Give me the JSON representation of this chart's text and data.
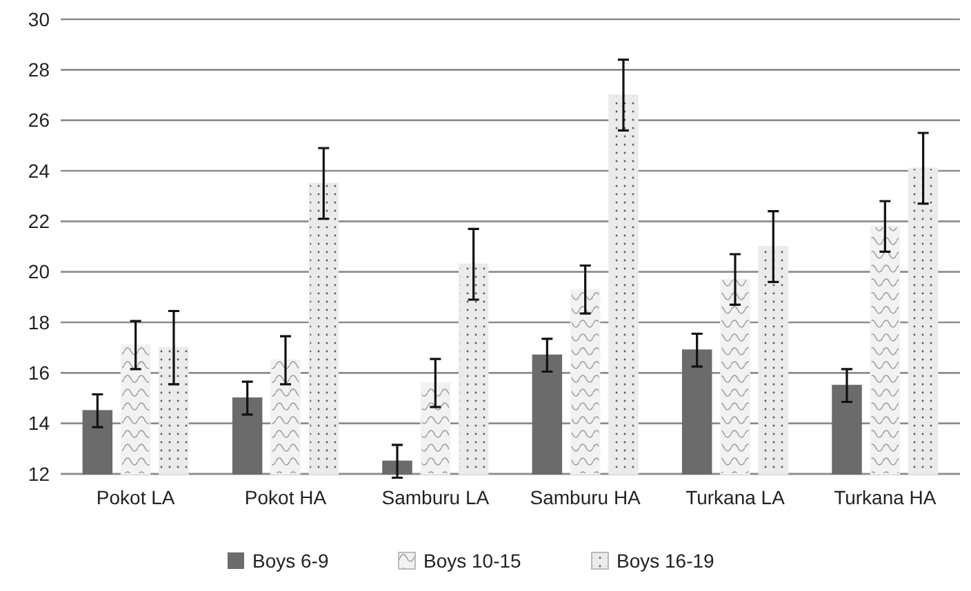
{
  "chart_data": {
    "type": "bar",
    "categories": [
      "Pokot LA",
      "Pokot HA",
      "Samburu LA",
      "Samburu HA",
      "Turkana LA",
      "Turkana HA"
    ],
    "series": [
      {
        "name": "Boys 6-9",
        "color": "#6b6b6b",
        "values": [
          14.5,
          15.0,
          12.5,
          16.7,
          16.9,
          15.5
        ],
        "errors": [
          0.65,
          0.65,
          0.65,
          0.65,
          0.65,
          0.65
        ]
      },
      {
        "name": "Boys 10-15",
        "color": "#f2f2f2",
        "values": [
          17.1,
          16.5,
          15.6,
          19.3,
          19.7,
          21.8
        ],
        "errors": [
          0.95,
          0.95,
          0.95,
          0.95,
          1.0,
          1.0
        ]
      },
      {
        "name": "Boys 16-19",
        "color": "#ebebeb",
        "values": [
          17.0,
          23.5,
          20.3,
          27.0,
          21.0,
          24.1
        ],
        "errors": [
          1.45,
          1.4,
          1.4,
          1.4,
          1.4,
          1.4
        ]
      }
    ],
    "ylim": [
      12,
      30
    ],
    "yticks": [
      12,
      14,
      16,
      18,
      20,
      22,
      24,
      26,
      28,
      30
    ],
    "grid": "y",
    "legend": "bottom"
  }
}
